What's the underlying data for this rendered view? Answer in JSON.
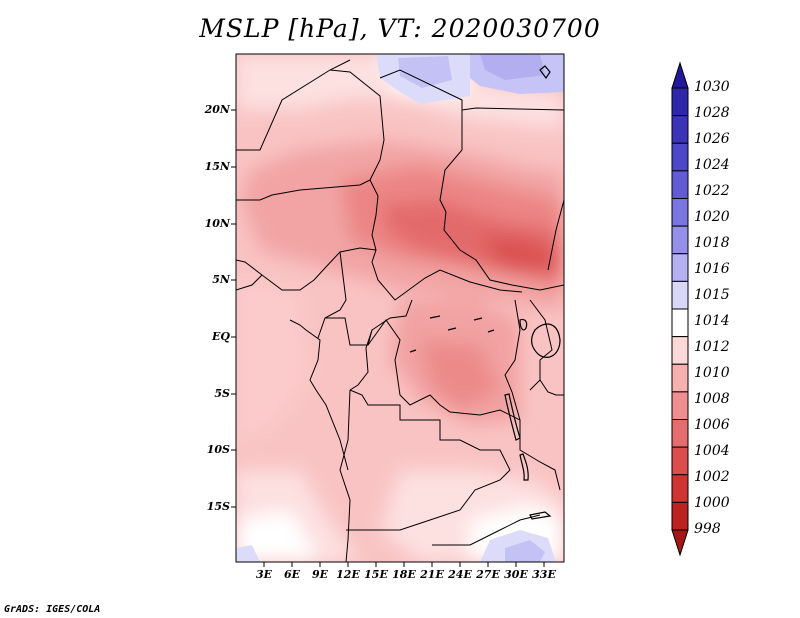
{
  "title": "MSLP [hPa], VT: 2020030700",
  "variable": "MSLP",
  "units": "hPa",
  "valid_time": "2020030700",
  "lat_labels": [
    "20N",
    "15N",
    "10N",
    "5N",
    "EQ",
    "5S",
    "10S",
    "15S"
  ],
  "lon_labels": [
    "3E",
    "6E",
    "9E",
    "12E",
    "15E",
    "18E",
    "21E",
    "24E",
    "27E",
    "30E",
    "33E"
  ],
  "colorbar": {
    "levels": [
      "1030",
      "1028",
      "1026",
      "1024",
      "1022",
      "1020",
      "1018",
      "1016",
      "1015",
      "1014",
      "1012",
      "1010",
      "1008",
      "1006",
      "1004",
      "1002",
      "1000",
      "998"
    ],
    "colors": [
      "#23179b",
      "#2e27aa",
      "#3b34b8",
      "#4d47c7",
      "#625cd4",
      "#7a76e0",
      "#9590ea",
      "#b4b1f2",
      "#d9d8fa",
      "#ffffff",
      "#fcd8d8",
      "#f6b0b0",
      "#ee8e8e",
      "#e66d6d",
      "#dc4e4e",
      "#cf3434",
      "#bd2222",
      "#a51616"
    ]
  },
  "credit": "GrADS: IGES/COLA"
}
